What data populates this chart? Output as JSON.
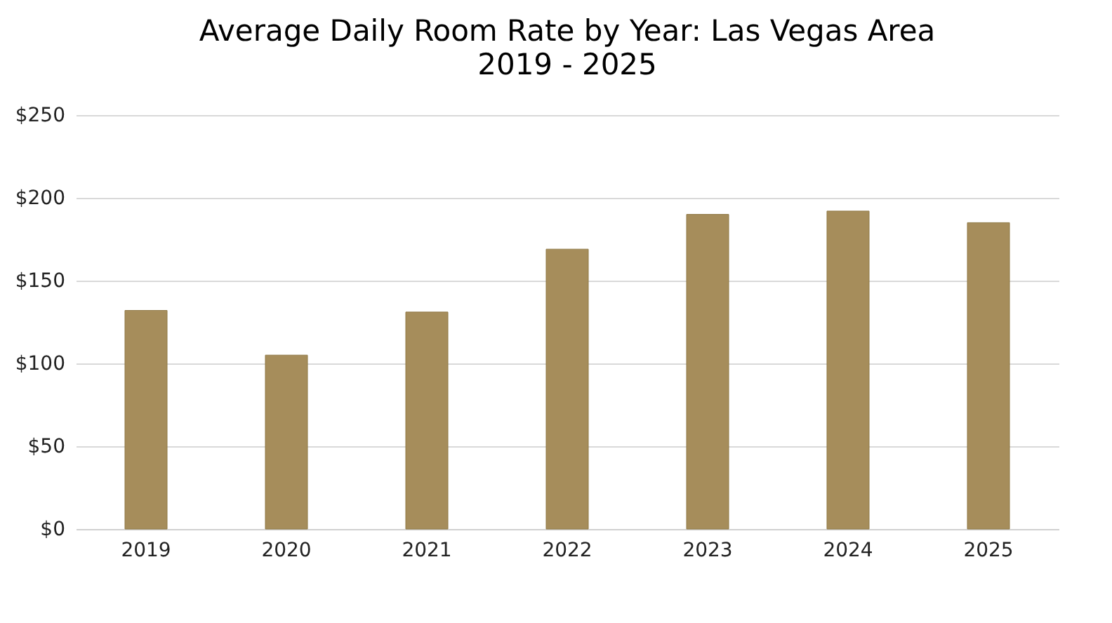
{
  "chart_data": {
    "type": "bar",
    "title": "Average Daily Room Rate by Year: Las Vegas Area",
    "subtitle": "2019 - 2025",
    "categories": [
      "2019",
      "2020",
      "2021",
      "2022",
      "2023",
      "2024",
      "2025"
    ],
    "values": [
      132,
      105,
      131,
      169,
      190,
      192,
      185
    ],
    "color": "#a68d5b",
    "ylim": [
      0,
      250
    ],
    "yticks": [
      {
        "value": 0,
        "label": "$0"
      },
      {
        "value": 50,
        "label": "$50"
      },
      {
        "value": 100,
        "label": "$100"
      },
      {
        "value": 150,
        "label": "$150"
      },
      {
        "value": 200,
        "label": "$200"
      },
      {
        "value": 250,
        "label": "$250"
      }
    ],
    "grid": "y"
  }
}
